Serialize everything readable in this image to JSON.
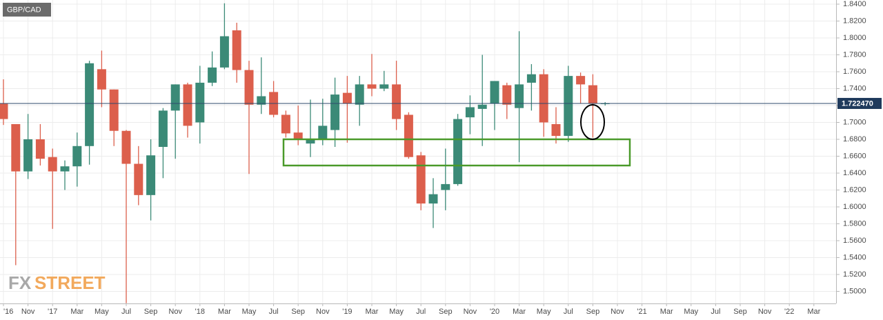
{
  "chart_data": {
    "type": "candlestick",
    "title": "GBP/CAD",
    "watermark": [
      "FX",
      "STREET"
    ],
    "categories": [
      "'16",
      null,
      "Nov",
      null,
      "'17",
      null,
      "Mar",
      null,
      "May",
      null,
      "Jul",
      null,
      "Sep",
      null,
      "Nov",
      null,
      "'18",
      null,
      "Mar",
      null,
      "May",
      null,
      "Jul",
      null,
      "Sep",
      null,
      "Nov",
      null,
      "'19",
      null,
      "Mar",
      null,
      "May",
      null,
      "Jul",
      null,
      "Sep",
      null,
      "Nov",
      null,
      "'20",
      null,
      "Mar",
      null,
      "May",
      null,
      "Jul",
      null,
      "Sep",
      null,
      "Nov",
      null,
      "'21",
      null,
      "Mar",
      null,
      "May",
      null,
      "Jul",
      null,
      "Sep",
      null,
      "Nov",
      null,
      "'22",
      null,
      "Mar"
    ],
    "open": [
      1.722,
      1.698,
      1.642,
      1.68,
      1.659,
      1.642,
      1.648,
      1.672,
      1.763,
      1.739,
      1.69,
      1.651,
      1.614,
      1.671,
      1.714,
      1.745,
      1.7,
      1.747,
      1.765,
      1.809,
      1.762,
      1.721,
      1.736,
      1.709,
      1.688,
      1.675,
      1.68,
      1.691,
      1.735,
      1.721,
      1.745,
      1.74,
      1.745,
      1.709,
      1.661,
      1.604,
      1.62,
      1.627,
      1.706,
      1.716,
      1.722,
      1.744,
      1.717,
      1.747,
      1.757,
      1.698,
      1.684,
      1.755,
      1.744,
      1.722,
      null,
      null,
      null,
      null,
      null,
      null,
      null,
      null,
      null,
      null,
      null,
      null,
      null,
      null,
      null,
      null,
      null
    ],
    "high": [
      1.751,
      1.698,
      1.71,
      1.698,
      1.669,
      1.655,
      1.688,
      1.773,
      1.785,
      1.739,
      1.691,
      1.672,
      1.68,
      1.717,
      1.745,
      1.747,
      1.767,
      1.784,
      1.841,
      1.818,
      1.773,
      1.777,
      1.749,
      1.714,
      1.72,
      1.727,
      1.728,
      1.753,
      1.755,
      1.755,
      1.781,
      1.761,
      1.773,
      1.712,
      1.665,
      1.634,
      1.669,
      1.71,
      1.732,
      1.78,
      1.749,
      1.747,
      1.808,
      1.769,
      1.763,
      1.718,
      1.767,
      1.759,
      1.757,
      1.724,
      null,
      null,
      null,
      null,
      null,
      null,
      null,
      null,
      null,
      null,
      null,
      null,
      null,
      null,
      null,
      null,
      null
    ],
    "low": [
      1.697,
      1.531,
      1.633,
      1.649,
      1.574,
      1.62,
      1.624,
      1.65,
      1.718,
      1.672,
      1.486,
      1.602,
      1.584,
      1.634,
      1.657,
      1.682,
      1.675,
      1.743,
      1.763,
      1.747,
      1.639,
      1.71,
      1.706,
      1.682,
      1.673,
      1.659,
      1.673,
      1.671,
      1.676,
      1.696,
      1.731,
      1.737,
      1.691,
      1.657,
      1.596,
      1.575,
      1.596,
      1.625,
      1.686,
      1.672,
      1.691,
      1.704,
      1.653,
      1.714,
      1.683,
      1.675,
      1.677,
      1.722,
      1.682,
      1.72,
      null,
      null,
      null,
      null,
      null,
      null,
      null,
      null,
      null,
      null,
      null,
      null,
      null,
      null,
      null,
      null,
      null
    ],
    "close": [
      1.704,
      1.642,
      1.68,
      1.657,
      1.642,
      1.648,
      1.672,
      1.77,
      1.739,
      1.69,
      1.651,
      1.614,
      1.661,
      1.714,
      1.745,
      1.696,
      1.747,
      1.765,
      1.802,
      1.762,
      1.721,
      1.731,
      1.709,
      1.687,
      1.68,
      1.68,
      1.696,
      1.733,
      1.722,
      1.745,
      1.74,
      1.745,
      1.704,
      1.659,
      1.604,
      1.615,
      1.627,
      1.704,
      1.718,
      1.721,
      1.749,
      1.721,
      1.745,
      1.757,
      1.7,
      1.684,
      1.755,
      1.745,
      1.722,
      1.72247,
      null,
      null,
      null,
      null,
      null,
      null,
      null,
      null,
      null,
      null,
      null,
      null,
      null,
      null,
      null,
      null,
      null
    ],
    "up_color": "#3b8a77",
    "down_color": "#dc5f4c",
    "ylim": [
      1.4857,
      1.8449
    ],
    "yticks": [
      {
        "value": 1.84,
        "label": "1.8400"
      },
      {
        "value": 1.82,
        "label": "1.8200"
      },
      {
        "value": 1.8,
        "label": "1.8000"
      },
      {
        "value": 1.78,
        "label": "1.7800"
      },
      {
        "value": 1.76,
        "label": "1.7600"
      },
      {
        "value": 1.74,
        "label": "1.7400"
      },
      {
        "value": 1.72,
        "label": "1.7200"
      },
      {
        "value": 1.7,
        "label": "1.7000"
      },
      {
        "value": 1.68,
        "label": "1.6800"
      },
      {
        "value": 1.66,
        "label": "1.6600"
      },
      {
        "value": 1.64,
        "label": "1.6400"
      },
      {
        "value": 1.62,
        "label": "1.6200"
      },
      {
        "value": 1.6,
        "label": "1.6000"
      },
      {
        "value": 1.58,
        "label": "1.5800"
      },
      {
        "value": 1.56,
        "label": "1.5600"
      },
      {
        "value": 1.54,
        "label": "1.5400"
      },
      {
        "value": 1.52,
        "label": "1.5200"
      },
      {
        "value": 1.5,
        "label": "1.5000"
      }
    ],
    "last_price": {
      "value": 1.72247,
      "label": "1.722470"
    },
    "grid": true
  }
}
